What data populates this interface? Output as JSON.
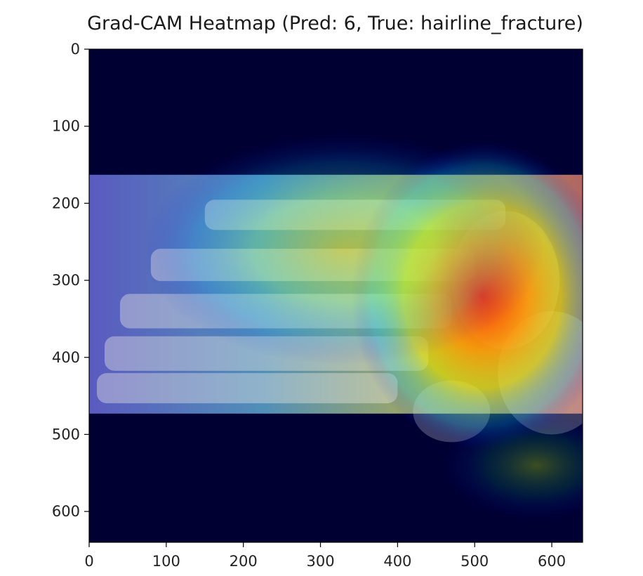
{
  "chart_data": {
    "type": "heatmap",
    "title": "Grad-CAM Heatmap (Pred: 6, True: hairline_fracture)",
    "xlabel": "",
    "ylabel": "",
    "xlim": [
      0,
      640
    ],
    "ylim": [
      640,
      0
    ],
    "x_ticks": [
      0,
      100,
      200,
      300,
      400,
      500,
      600
    ],
    "y_ticks": [
      0,
      100,
      200,
      300,
      400,
      500,
      600
    ],
    "colormap": "jet",
    "xray_band": {
      "y_start": 163,
      "y_end": 473
    },
    "hotspots": [
      {
        "name": "primary",
        "x": 510,
        "y": 320,
        "rx": 170,
        "ry": 200,
        "intensity": 1.0
      },
      {
        "name": "secondary",
        "x": 330,
        "y": 260,
        "rx": 260,
        "ry": 150,
        "intensity": 0.55
      },
      {
        "name": "lower-right",
        "x": 580,
        "y": 540,
        "rx": 120,
        "ry": 70,
        "intensity": 0.5
      }
    ]
  },
  "colors": {
    "background": "#000033",
    "cold": "#00007f",
    "warm": "#ffff00",
    "hot": "#ff0000"
  }
}
